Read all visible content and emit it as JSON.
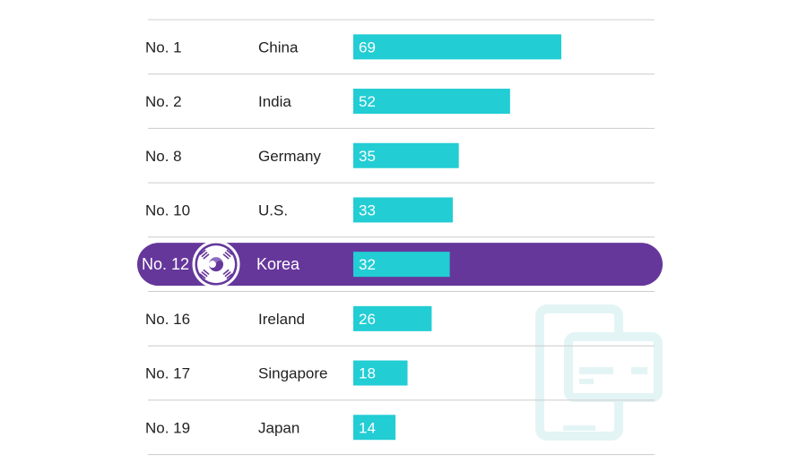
{
  "chart_data": {
    "type": "bar",
    "orientation": "horizontal",
    "categories": [
      "China",
      "India",
      "Germany",
      "U.S.",
      "Korea",
      "Ireland",
      "Singapore",
      "Japan"
    ],
    "ranks": [
      "No. 1",
      "No. 2",
      "No. 8",
      "No. 10",
      "No. 12",
      "No. 16",
      "No. 17",
      "No. 19"
    ],
    "values": [
      69,
      52,
      35,
      33,
      32,
      26,
      18,
      14
    ],
    "highlight": "Korea",
    "colors": {
      "bar": "#22cdd4",
      "highlight_band": "#65379b",
      "divider": "#cccccc",
      "text": "#222222",
      "watermark": "#e3f4f5"
    }
  },
  "decorations": {
    "flag_icon": "south-korea-flag-icon",
    "watermark_icon": "mobile-payment-card-icon"
  }
}
